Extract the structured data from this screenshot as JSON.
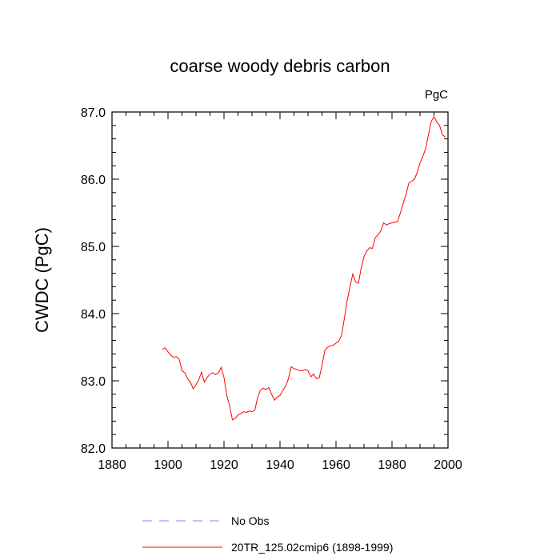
{
  "chart_data": {
    "type": "line",
    "title": "coarse woody debris carbon",
    "units_label": "PgC",
    "ylabel": "CWDC  (PgC)",
    "xlabel": "",
    "xlim": [
      1880,
      2000
    ],
    "ylim": [
      82.0,
      87.0
    ],
    "x_ticks": [
      1880,
      1900,
      1920,
      1940,
      1960,
      1980,
      2000
    ],
    "x_tick_labels": [
      "1880",
      "1900",
      "1920",
      "1940",
      "1960",
      "1980",
      "2000"
    ],
    "y_ticks": [
      82.0,
      83.0,
      84.0,
      85.0,
      86.0,
      87.0
    ],
    "y_tick_labels": [
      "82.0",
      "83.0",
      "84.0",
      "85.0",
      "86.0",
      "87.0"
    ],
    "grid": false,
    "legend_placement": "bottom",
    "series": [
      {
        "name": "No Obs",
        "color": "#8080ff",
        "style": "dashed",
        "x": [],
        "y": []
      },
      {
        "name": "20TR_125.02cmip6 (1898-1999)",
        "color": "#ff0000",
        "style": "solid",
        "x": [
          1898,
          1899,
          1900,
          1901,
          1902,
          1903,
          1904,
          1905,
          1906,
          1907,
          1908,
          1909,
          1910,
          1911,
          1912,
          1913,
          1914,
          1915,
          1916,
          1917,
          1918,
          1919,
          1920,
          1921,
          1922,
          1923,
          1924,
          1925,
          1926,
          1927,
          1928,
          1929,
          1930,
          1931,
          1932,
          1933,
          1934,
          1935,
          1936,
          1937,
          1938,
          1939,
          1940,
          1941,
          1942,
          1943,
          1944,
          1945,
          1946,
          1947,
          1948,
          1949,
          1950,
          1951,
          1952,
          1953,
          1954,
          1955,
          1956,
          1957,
          1958,
          1959,
          1960,
          1961,
          1962,
          1963,
          1964,
          1965,
          1966,
          1967,
          1968,
          1969,
          1970,
          1971,
          1972,
          1973,
          1974,
          1975,
          1976,
          1977,
          1978,
          1979,
          1980,
          1981,
          1982,
          1983,
          1984,
          1985,
          1986,
          1987,
          1988,
          1989,
          1990,
          1991,
          1992,
          1993,
          1994,
          1995,
          1996,
          1997,
          1998,
          1999
        ],
        "y": [
          83.47,
          83.49,
          83.43,
          83.38,
          83.35,
          83.36,
          83.32,
          83.15,
          83.12,
          83.03,
          82.98,
          82.88,
          82.94,
          83.02,
          83.13,
          82.98,
          83.05,
          83.1,
          83.12,
          83.09,
          83.12,
          83.2,
          83.05,
          82.78,
          82.63,
          82.42,
          82.44,
          82.49,
          82.51,
          82.54,
          82.53,
          82.55,
          82.54,
          82.56,
          82.75,
          82.86,
          82.89,
          82.87,
          82.9,
          82.8,
          82.71,
          82.76,
          82.78,
          82.86,
          82.92,
          83.03,
          83.21,
          83.18,
          83.17,
          83.15,
          83.15,
          83.17,
          83.15,
          83.06,
          83.1,
          83.03,
          83.04,
          83.23,
          83.45,
          83.5,
          83.52,
          83.53,
          83.56,
          83.59,
          83.68,
          83.93,
          84.2,
          84.4,
          84.59,
          84.47,
          84.45,
          84.68,
          84.85,
          84.93,
          84.98,
          84.97,
          85.13,
          85.17,
          85.23,
          85.35,
          85.32,
          85.34,
          85.35,
          85.36,
          85.37,
          85.5,
          85.64,
          85.77,
          85.94,
          85.97,
          86.0,
          86.1,
          86.24,
          86.34,
          86.45,
          86.66,
          86.86,
          86.93,
          86.85,
          86.8,
          86.66,
          86.63
        ]
      }
    ]
  }
}
